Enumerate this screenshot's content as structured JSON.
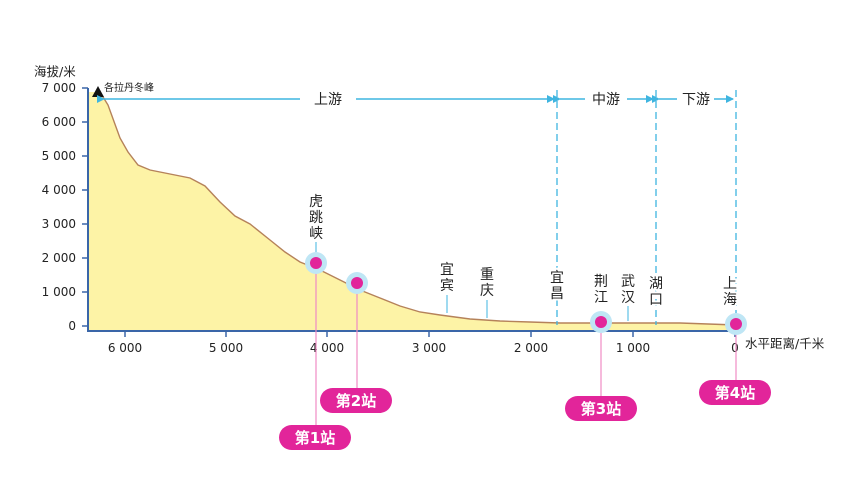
{
  "axes": {
    "y_title": "海拔/米",
    "x_title": "水平距离/千米",
    "y_ticks": [
      "7 000",
      "6 000",
      "5 000",
      "4 000",
      "3 000",
      "2 000",
      "1 000",
      "0"
    ],
    "x_ticks": [
      "6 000",
      "5 000",
      "4 000",
      "3 000",
      "2 000",
      "1 000",
      "0"
    ]
  },
  "peak_label": "各拉丹冬峰",
  "sections": {
    "upper": "上游",
    "middle": "中游",
    "lower": "下游"
  },
  "places": {
    "hutiaoxia": [
      "虎",
      "跳",
      "峡"
    ],
    "yibin": [
      "宜",
      "宾"
    ],
    "chongqing": [
      "重",
      "庆"
    ],
    "yichang": [
      "宜",
      "昌"
    ],
    "jingjiang": [
      "荆",
      "江"
    ],
    "wuhan": [
      "武",
      "汉"
    ],
    "hukou": [
      "湖",
      "口"
    ],
    "shanghai": [
      "上",
      "海"
    ]
  },
  "stations": {
    "s1": "第1站",
    "s2": "第2站",
    "s3": "第3站",
    "s4": "第4站"
  },
  "colors": {
    "terrain_fill": "#fdf3a6",
    "terrain_line": "#b5825a",
    "section_line": "#3fb5e0",
    "station": "#e2259a",
    "station_halo": "#bfe6f5",
    "leader": "#ef8bc4",
    "axis": "#3a66a8"
  }
}
